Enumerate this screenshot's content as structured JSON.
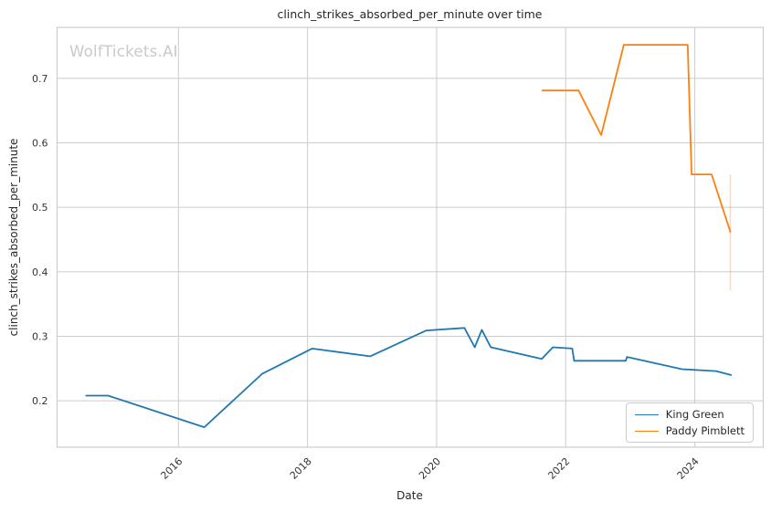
{
  "figure": {
    "watermark": "WolfTickets.AI"
  },
  "theme": {
    "background": "#ffffff",
    "grid_color": "#cccccc",
    "spine_color": "#cccccc",
    "tick_text_color": "#333333",
    "title_color": "#262626",
    "watermark_color": "#c9c9c9"
  },
  "chart_data": {
    "type": "line",
    "title": "clinch_strikes_absorbed_per_minute over time",
    "xlabel": "Date",
    "ylabel": "clinch_strikes_absorbed_per_minute",
    "xlim": [
      2014.12,
      2025.06
    ],
    "ylim": [
      0.128,
      0.779
    ],
    "x_ticks": [
      2016,
      2018,
      2020,
      2022,
      2024
    ],
    "y_ticks": [
      0.2,
      0.3,
      0.4,
      0.5,
      0.6,
      0.7
    ],
    "grid": true,
    "legend_position": "lower right",
    "series": [
      {
        "name": "King Green",
        "color": "#1f77b4",
        "points": [
          [
            2014.57,
            0.208
          ],
          [
            2014.91,
            0.208
          ],
          [
            2016.4,
            0.159
          ],
          [
            2017.3,
            0.242
          ],
          [
            2018.07,
            0.281
          ],
          [
            2018.97,
            0.269
          ],
          [
            2019.84,
            0.309
          ],
          [
            2020.43,
            0.313
          ],
          [
            2020.59,
            0.283
          ],
          [
            2020.7,
            0.31
          ],
          [
            2020.84,
            0.283
          ],
          [
            2021.63,
            0.265
          ],
          [
            2021.8,
            0.283
          ],
          [
            2022.1,
            0.281
          ],
          [
            2022.13,
            0.262
          ],
          [
            2022.93,
            0.262
          ],
          [
            2022.95,
            0.268
          ],
          [
            2023.8,
            0.249
          ],
          [
            2024.33,
            0.246
          ],
          [
            2024.56,
            0.24
          ]
        ]
      },
      {
        "name": "Paddy Pimblett",
        "color": "#ff7f0e",
        "points": [
          [
            2021.64,
            0.681
          ],
          [
            2022.2,
            0.681
          ],
          [
            2022.55,
            0.612
          ],
          [
            2022.9,
            0.752
          ],
          [
            2023.89,
            0.752
          ],
          [
            2023.95,
            0.551
          ],
          [
            2024.26,
            0.551
          ],
          [
            2024.55,
            0.462
          ]
        ]
      }
    ],
    "annotations": [
      {
        "type": "vertical_error_bar",
        "x": 2024.55,
        "y_min": 0.371,
        "y_max": 0.551,
        "color": "#ff7f0e",
        "opacity": 0.3
      }
    ]
  }
}
